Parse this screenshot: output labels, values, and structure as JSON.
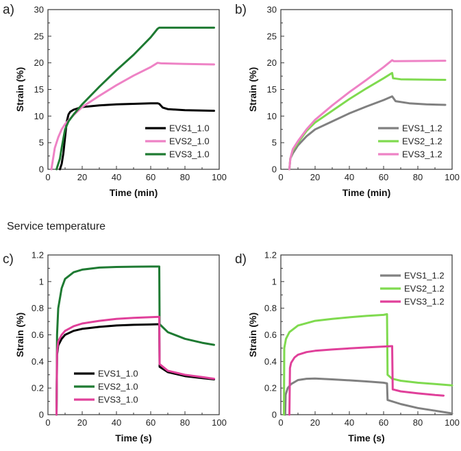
{
  "section_label": "Service temperature",
  "colors": {
    "black": "#000000",
    "pink": "#ee82c5",
    "dark_green": "#1e7a32",
    "gray": "#808080",
    "light_green": "#7fda4f",
    "magenta": "#e0409a"
  },
  "chart_data": [
    {
      "type": "line",
      "panel_label": "a)",
      "xlabel": "Time (min)",
      "ylabel": "Strain (%)",
      "xlim": [
        0,
        100
      ],
      "ylim": [
        0,
        30
      ],
      "xticks": [
        0,
        20,
        40,
        60,
        80,
        100
      ],
      "yticks": [
        0,
        5,
        10,
        15,
        20,
        25,
        30
      ],
      "legend_position": "bottom-right",
      "series": [
        {
          "name": "EVS1_1.0",
          "color": "#000000",
          "points": [
            [
              7,
              0
            ],
            [
              8,
              1
            ],
            [
              9,
              3
            ],
            [
              10,
              6
            ],
            [
              11,
              9
            ],
            [
              12,
              10.3
            ],
            [
              13,
              10.8
            ],
            [
              15,
              11.2
            ],
            [
              20,
              11.7
            ],
            [
              30,
              12
            ],
            [
              40,
              12.2
            ],
            [
              50,
              12.3
            ],
            [
              60,
              12.4
            ],
            [
              64,
              12.4
            ],
            [
              65,
              12.3
            ],
            [
              67,
              11.6
            ],
            [
              70,
              11.3
            ],
            [
              80,
              11.1
            ],
            [
              97,
              11
            ]
          ]
        },
        {
          "name": "EVS2_1.0",
          "color": "#ee82c5",
          "points": [
            [
              2,
              0
            ],
            [
              3,
              2
            ],
            [
              4,
              4
            ],
            [
              6,
              6
            ],
            [
              8,
              7.5
            ],
            [
              10,
              8.5
            ],
            [
              15,
              10.2
            ],
            [
              20,
              11.7
            ],
            [
              30,
              13.8
            ],
            [
              40,
              15.8
            ],
            [
              50,
              17.6
            ],
            [
              60,
              19.2
            ],
            [
              64,
              20
            ],
            [
              66,
              19.9
            ],
            [
              80,
              19.8
            ],
            [
              97,
              19.7
            ]
          ]
        },
        {
          "name": "EVS3_1.0",
          "color": "#1e7a32",
          "points": [
            [
              5,
              0
            ],
            [
              7,
              2
            ],
            [
              8,
              4
            ],
            [
              10,
              7.5
            ],
            [
              12,
              9
            ],
            [
              15,
              10.3
            ],
            [
              20,
              12.2
            ],
            [
              30,
              15.5
            ],
            [
              40,
              18.6
            ],
            [
              50,
              21.5
            ],
            [
              60,
              24.8
            ],
            [
              64,
              26.4
            ],
            [
              65,
              26.6
            ],
            [
              80,
              26.6
            ],
            [
              97,
              26.6
            ]
          ]
        }
      ]
    },
    {
      "type": "line",
      "panel_label": "b)",
      "xlabel": "Time (min)",
      "ylabel": "Strain (%)",
      "xlim": [
        0,
        100
      ],
      "ylim": [
        0,
        30
      ],
      "xticks": [
        0,
        20,
        40,
        60,
        80,
        100
      ],
      "yticks": [
        0,
        5,
        10,
        15,
        20,
        25,
        30
      ],
      "legend_position": "bottom-right",
      "series": [
        {
          "name": "EVS1_1.2",
          "color": "#808080",
          "points": [
            [
              5,
              0
            ],
            [
              5.5,
              2
            ],
            [
              7,
              3
            ],
            [
              10,
              4.5
            ],
            [
              15,
              6.2
            ],
            [
              20,
              7.5
            ],
            [
              30,
              9
            ],
            [
              40,
              10.5
            ],
            [
              50,
              11.8
            ],
            [
              60,
              13
            ],
            [
              65,
              13.7
            ],
            [
              67,
              12.8
            ],
            [
              75,
              12.4
            ],
            [
              85,
              12.2
            ],
            [
              96,
              12.1
            ]
          ]
        },
        {
          "name": "EVS2_1.2",
          "color": "#7fda4f",
          "points": [
            [
              5,
              0
            ],
            [
              5.5,
              2
            ],
            [
              7,
              3.5
            ],
            [
              10,
              5
            ],
            [
              15,
              7.2
            ],
            [
              20,
              8.8
            ],
            [
              30,
              11
            ],
            [
              40,
              13.2
            ],
            [
              50,
              15.2
            ],
            [
              60,
              17.1
            ],
            [
              65,
              18.1
            ],
            [
              65.5,
              17.1
            ],
            [
              70,
              16.9
            ],
            [
              96,
              16.8
            ]
          ]
        },
        {
          "name": "EVS3_1.2",
          "color": "#ee82c5",
          "points": [
            [
              5,
              0
            ],
            [
              5.5,
              2
            ],
            [
              7,
              3.8
            ],
            [
              10,
              5.3
            ],
            [
              15,
              7.5
            ],
            [
              20,
              9.3
            ],
            [
              30,
              12
            ],
            [
              40,
              14.5
            ],
            [
              50,
              16.8
            ],
            [
              60,
              19.2
            ],
            [
              65,
              20.5
            ],
            [
              66,
              20.3
            ],
            [
              96,
              20.4
            ]
          ]
        }
      ]
    },
    {
      "type": "line",
      "panel_label": "c)",
      "xlabel": "Time (s)",
      "ylabel": "Strain (%)",
      "xlim": [
        0,
        100
      ],
      "ylim": [
        0,
        1.2
      ],
      "xticks": [
        0,
        20,
        40,
        60,
        80,
        100
      ],
      "yticks": [
        0,
        0.2,
        0.4,
        0.6,
        0.8,
        1,
        1.2
      ],
      "legend_position": "bottom-left",
      "series": [
        {
          "name": "EVS1_1.0",
          "color": "#000000",
          "points": [
            [
              5,
              0
            ],
            [
              5.3,
              0.45
            ],
            [
              6,
              0.52
            ],
            [
              8,
              0.57
            ],
            [
              10,
              0.6
            ],
            [
              15,
              0.63
            ],
            [
              20,
              0.645
            ],
            [
              30,
              0.66
            ],
            [
              40,
              0.67
            ],
            [
              50,
              0.675
            ],
            [
              60,
              0.678
            ],
            [
              65,
              0.68
            ],
            [
              65.2,
              0.36
            ],
            [
              70,
              0.32
            ],
            [
              80,
              0.29
            ],
            [
              90,
              0.275
            ],
            [
              97,
              0.265
            ]
          ]
        },
        {
          "name": "EVS2_1.0",
          "color": "#1e7a32",
          "points": [
            [
              5,
              0
            ],
            [
              5.3,
              0.6
            ],
            [
              6,
              0.8
            ],
            [
              8,
              0.95
            ],
            [
              10,
              1.02
            ],
            [
              15,
              1.07
            ],
            [
              20,
              1.09
            ],
            [
              30,
              1.105
            ],
            [
              40,
              1.11
            ],
            [
              50,
              1.112
            ],
            [
              60,
              1.113
            ],
            [
              65,
              1.113
            ],
            [
              65.2,
              0.68
            ],
            [
              70,
              0.62
            ],
            [
              80,
              0.57
            ],
            [
              90,
              0.54
            ],
            [
              97,
              0.525
            ]
          ]
        },
        {
          "name": "EVS3_1.0",
          "color": "#e0409a",
          "points": [
            [
              5,
              0
            ],
            [
              5.3,
              0.47
            ],
            [
              6,
              0.55
            ],
            [
              8,
              0.6
            ],
            [
              10,
              0.63
            ],
            [
              15,
              0.665
            ],
            [
              20,
              0.685
            ],
            [
              30,
              0.705
            ],
            [
              40,
              0.72
            ],
            [
              50,
              0.727
            ],
            [
              60,
              0.733
            ],
            [
              65,
              0.735
            ],
            [
              65.2,
              0.38
            ],
            [
              70,
              0.33
            ],
            [
              80,
              0.3
            ],
            [
              90,
              0.283
            ],
            [
              97,
              0.27
            ]
          ]
        }
      ]
    },
    {
      "type": "line",
      "panel_label": "d)",
      "xlabel": "Time (s)",
      "ylabel": "Strain (%)",
      "xlim": [
        0,
        100
      ],
      "ylim": [
        0,
        1.2
      ],
      "xticks": [
        0,
        20,
        40,
        60,
        80,
        100
      ],
      "yticks": [
        0,
        0.2,
        0.4,
        0.6,
        0.8,
        1,
        1.2
      ],
      "legend_position": "top-right",
      "series": [
        {
          "name": "EVS1_1.2",
          "color": "#808080",
          "points": [
            [
              2.5,
              0
            ],
            [
              2.8,
              0.15
            ],
            [
              4,
              0.2
            ],
            [
              6,
              0.23
            ],
            [
              10,
              0.26
            ],
            [
              15,
              0.27
            ],
            [
              20,
              0.272
            ],
            [
              30,
              0.265
            ],
            [
              40,
              0.258
            ],
            [
              50,
              0.25
            ],
            [
              60,
              0.24
            ],
            [
              62,
              0.235
            ],
            [
              62.3,
              0.11
            ],
            [
              70,
              0.08
            ],
            [
              80,
              0.05
            ],
            [
              90,
              0.03
            ],
            [
              100,
              0.01
            ]
          ]
        },
        {
          "name": "EVS2_1.2",
          "color": "#7fda4f",
          "points": [
            [
              1.8,
              0
            ],
            [
              2,
              0.5
            ],
            [
              3,
              0.57
            ],
            [
              5,
              0.62
            ],
            [
              10,
              0.67
            ],
            [
              20,
              0.705
            ],
            [
              30,
              0.72
            ],
            [
              40,
              0.732
            ],
            [
              50,
              0.742
            ],
            [
              60,
              0.75
            ],
            [
              62,
              0.755
            ],
            [
              62.3,
              0.3
            ],
            [
              65,
              0.27
            ],
            [
              70,
              0.255
            ],
            [
              80,
              0.24
            ],
            [
              90,
              0.23
            ],
            [
              100,
              0.22
            ]
          ]
        },
        {
          "name": "EVS3_1.2",
          "color": "#e0409a",
          "points": [
            [
              5,
              0
            ],
            [
              5.3,
              0.35
            ],
            [
              6,
              0.39
            ],
            [
              8,
              0.43
            ],
            [
              10,
              0.45
            ],
            [
              15,
              0.47
            ],
            [
              20,
              0.48
            ],
            [
              30,
              0.49
            ],
            [
              40,
              0.498
            ],
            [
              50,
              0.505
            ],
            [
              60,
              0.512
            ],
            [
              65,
              0.515
            ],
            [
              65.3,
              0.19
            ],
            [
              70,
              0.175
            ],
            [
              80,
              0.16
            ],
            [
              90,
              0.148
            ],
            [
              95,
              0.143
            ]
          ]
        }
      ]
    }
  ]
}
